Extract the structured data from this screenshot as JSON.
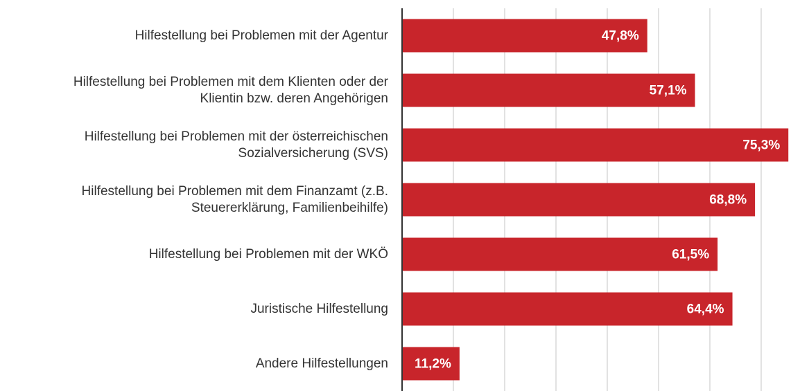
{
  "chart_data": {
    "type": "bar",
    "orientation": "horizontal",
    "categories": [
      "Hilfestellung bei Problemen mit der Agentur",
      "Hilfestellung bei Problemen mit dem Klienten oder der\nKlientin bzw. deren Angehörigen",
      "Hilfestellung bei Problemen mit der österreichischen\nSozialversicherung (SVS)",
      "Hilfestellung bei Problemen mit dem Finanzamt (z.B.\nSteuererklärung, Familienbeihilfe)",
      "Hilfestellung bei Problemen mit der WKÖ",
      "Juristische Hilfestellung",
      "Andere Hilfestellungen"
    ],
    "values": [
      47.8,
      57.1,
      75.3,
      68.8,
      61.5,
      64.4,
      11.2
    ],
    "value_labels": [
      "47,8%",
      "57,1%",
      "75,3%",
      "68,8%",
      "61,5%",
      "64,4%",
      "11,2%"
    ],
    "color": "#c8252b",
    "xlim": [
      0,
      79
    ],
    "xticks": [
      0,
      10,
      20,
      30,
      40,
      50,
      60,
      70
    ],
    "grid": true
  }
}
